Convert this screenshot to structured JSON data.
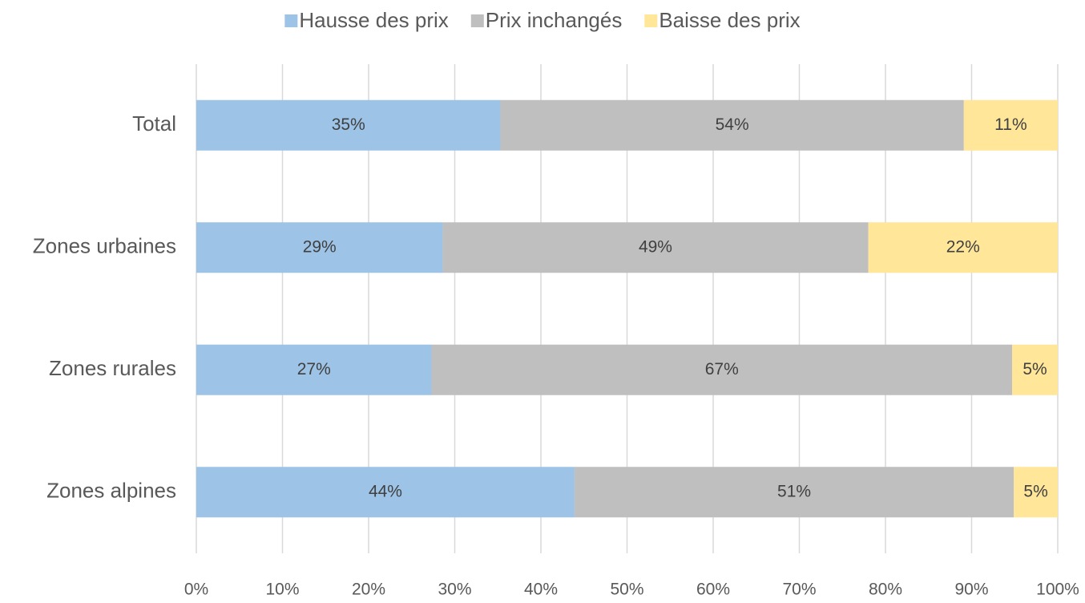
{
  "chart_data": {
    "type": "stacked-barh",
    "categories": [
      "Total",
      "Zones urbaines",
      "Zones rurales",
      "Zones alpines"
    ],
    "series": [
      {
        "name": "Hausse des prix",
        "color": "#9dc3e6",
        "values": [
          35.3,
          28.6,
          27.3,
          43.9
        ],
        "value_labels": [
          "35%",
          "29%",
          "27%",
          "44%"
        ]
      },
      {
        "name": "Prix inchangés",
        "color": "#bfbfbf",
        "values": [
          53.8,
          49.4,
          67.4,
          51.0
        ],
        "value_labels": [
          "54%",
          "49%",
          "67%",
          "51%"
        ]
      },
      {
        "name": "Baisse des prix",
        "color": "#ffe699",
        "values": [
          10.9,
          22.0,
          5.3,
          5.1
        ],
        "value_labels": [
          "11%",
          "22%",
          "5%",
          "5%"
        ]
      }
    ],
    "xlim": [
      0,
      100
    ],
    "xticks": [
      {
        "value": 0,
        "label": "0%"
      },
      {
        "value": 10,
        "label": "10%"
      },
      {
        "value": 20,
        "label": "20%"
      },
      {
        "value": 30,
        "label": "30%"
      },
      {
        "value": 40,
        "label": "40%"
      },
      {
        "value": 50,
        "label": "50%"
      },
      {
        "value": 60,
        "label": "60%"
      },
      {
        "value": 70,
        "label": "70%"
      },
      {
        "value": 80,
        "label": "80%"
      },
      {
        "value": 90,
        "label": "90%"
      },
      {
        "value": 100,
        "label": "100%"
      }
    ],
    "grid": true,
    "legend": "top"
  }
}
